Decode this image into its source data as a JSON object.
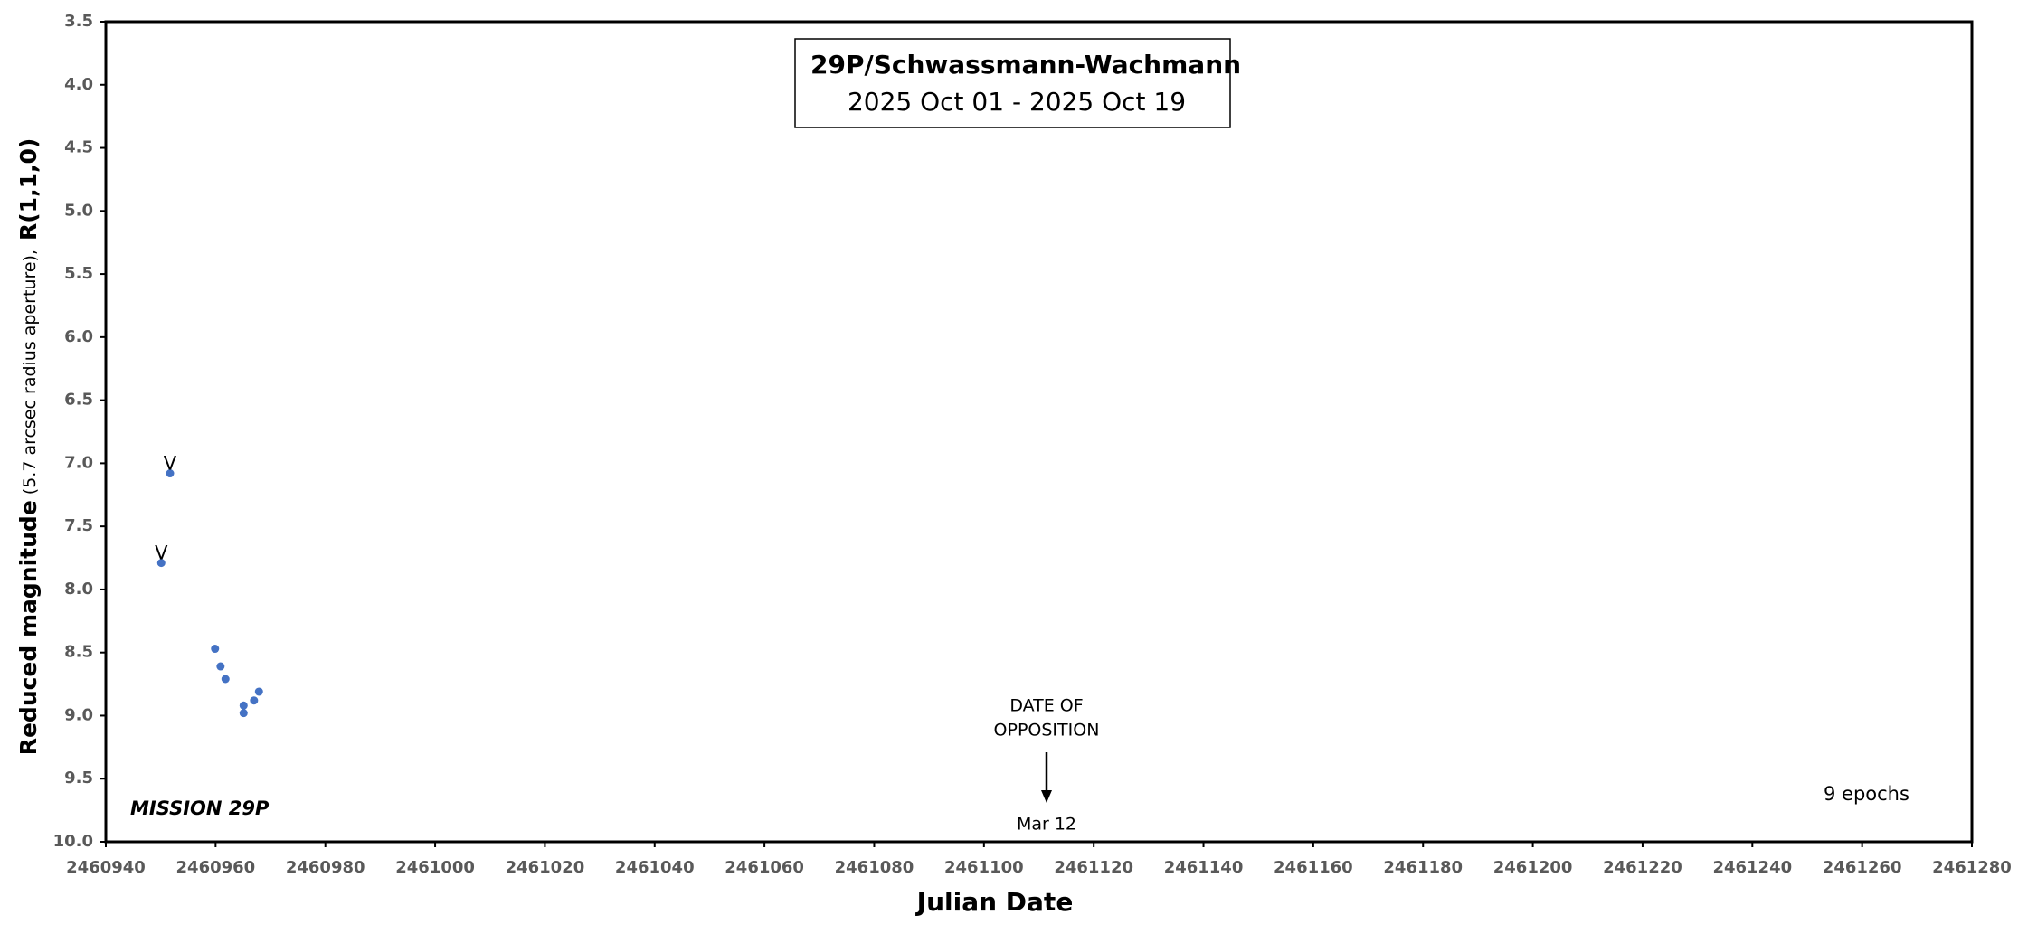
{
  "chart_data": {
    "type": "scatter",
    "title": "29P/Schwassmann-Wachmann",
    "subtitle": "2025 Oct 01 - 2025 Oct 19",
    "x_label": "Julian Date",
    "y_label": {
      "main": "Reduced magnitude",
      "note": "(5.7 arcsec radius aperture),",
      "quantity": "R(1,1,0)"
    },
    "series": [
      {
        "color": "#4472c4",
        "x": [
          2460950.1,
          2460951.7,
          2460959.9,
          2460960.9,
          2460961.8,
          2460965.1,
          2460965.1,
          2460967.0,
          2460967.9
        ],
        "values": [
          7.79,
          7.08,
          8.47,
          8.61,
          8.71,
          8.92,
          8.98,
          8.88,
          8.81
        ],
        "point_labels": [
          "V",
          "V",
          null,
          null,
          null,
          null,
          null,
          null,
          null
        ]
      }
    ],
    "xlim": [
      2460940,
      2461280
    ],
    "xticks": [
      2460940,
      2460960,
      2460980,
      2461000,
      2461020,
      2461040,
      2461060,
      2461080,
      2461100,
      2461120,
      2461140,
      2461160,
      2461180,
      2461200,
      2461220,
      2461240,
      2461260,
      2461280
    ],
    "ylim": [
      3.5,
      10.0
    ],
    "y_inverted": true,
    "yticks": [
      {
        "value": 3.5,
        "label": "3.5"
      },
      {
        "value": 4.0,
        "label": "4.0"
      },
      {
        "value": 4.5,
        "label": "4.5"
      },
      {
        "value": 5.0,
        "label": "5.0"
      },
      {
        "value": 5.5,
        "label": "5.5"
      },
      {
        "value": 6.0,
        "label": "6.0"
      },
      {
        "value": 6.5,
        "label": "6.5"
      },
      {
        "value": 7.0,
        "label": "7.0"
      },
      {
        "value": 7.5,
        "label": "7.5"
      },
      {
        "value": 8.0,
        "label": "8.0"
      },
      {
        "value": 8.5,
        "label": "8.5"
      },
      {
        "value": 9.0,
        "label": "9.0"
      },
      {
        "value": 9.5,
        "label": "9.5"
      },
      {
        "value": 10.0,
        "label": "10.0"
      }
    ],
    "grid": false,
    "opposition": {
      "lines": [
        "DATE OF",
        "OPPOSITION"
      ],
      "x": 2461111.4,
      "date_label": "Mar 12"
    },
    "mission_label": "MISSION 29P",
    "epochs_label": "9  epochs"
  }
}
